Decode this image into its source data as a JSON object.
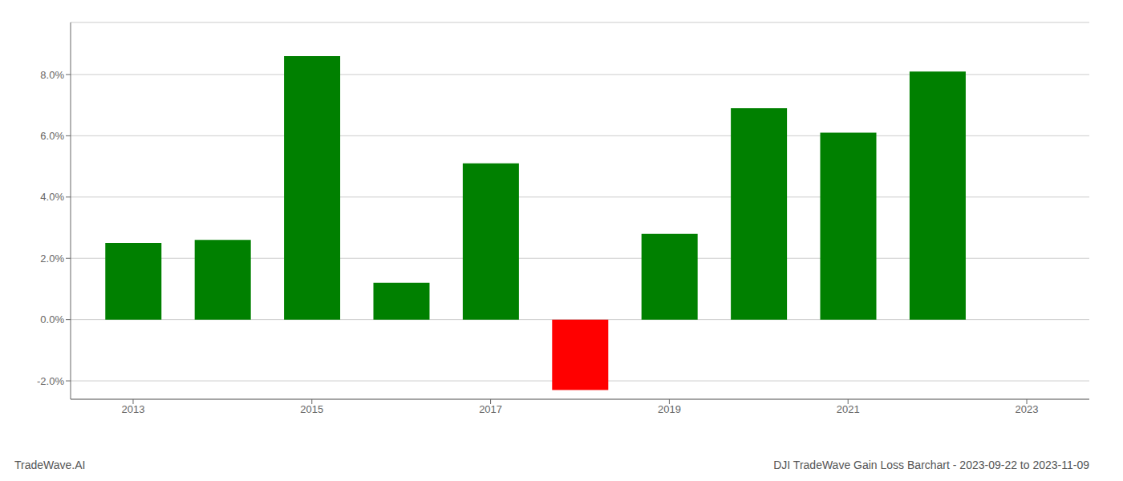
{
  "chart_data": {
    "type": "bar",
    "title": "DJI TradeWave Gain Loss Barchart - 2023-09-22 to 2023-11-09",
    "annotations": [
      "TradeWave.AI"
    ],
    "x": [
      2013,
      2014,
      2015,
      2016,
      2017,
      2018,
      2019,
      2020,
      2021,
      2022,
      2023
    ],
    "values": [
      0.025,
      0.026,
      0.086,
      0.012,
      0.051,
      -0.023,
      0.028,
      0.069,
      0.061,
      0.081,
      null
    ],
    "colors": [
      "#008000",
      "#008000",
      "#008000",
      "#008000",
      "#008000",
      "#ff0000",
      "#008000",
      "#008000",
      "#008000",
      "#008000",
      "#008000"
    ],
    "xlim": [
      2012.3,
      2023.7
    ],
    "xticks": [
      2013,
      2015,
      2017,
      2019,
      2021,
      2023
    ],
    "ylim": [
      -0.026,
      0.097
    ],
    "yticks": [
      {
        "value": -0.02,
        "label": "-2.0%"
      },
      {
        "value": 0.0,
        "label": "0.0%"
      },
      {
        "value": 0.02,
        "label": "2.0%"
      },
      {
        "value": 0.04,
        "label": "4.0%"
      },
      {
        "value": 0.06,
        "label": "6.0%"
      },
      {
        "value": 0.08,
        "label": "8.0%"
      }
    ],
    "grid": true
  }
}
